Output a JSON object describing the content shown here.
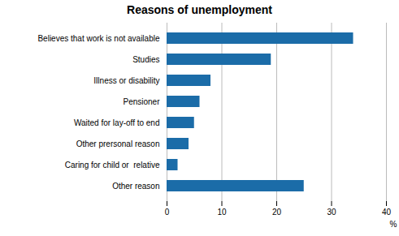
{
  "chart_data": {
    "type": "bar",
    "orientation": "horizontal",
    "title": "Reasons of unemployment",
    "categories": [
      "Other reason",
      "Caring for child or  relative",
      "Other prersonal reason",
      "Waited for lay-off to end",
      "Pensioner",
      "Illness or disability",
      "Studies",
      "Believes that work is not available"
    ],
    "values": [
      25,
      2,
      4,
      5,
      6,
      8,
      19,
      34
    ],
    "color": "#1b6ca8",
    "xlim": [
      0,
      40
    ],
    "xticks": [
      0,
      10,
      20,
      30,
      40
    ],
    "xlabel": "%",
    "grid": true
  }
}
